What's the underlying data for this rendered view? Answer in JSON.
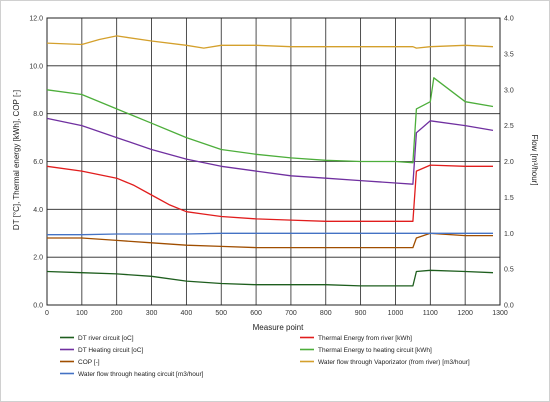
{
  "chart_data": {
    "type": "line",
    "title": "",
    "xlabel": "Measure point",
    "ylabel": "DT [°C], Thermal energy [kWh], COP [-]",
    "y2label": "Flow [m³/hour]",
    "xlim": [
      0,
      1300
    ],
    "ylim": [
      0,
      12
    ],
    "y2lim": [
      0,
      4
    ],
    "x_ticks": [
      "0",
      "100",
      "200",
      "300",
      "400",
      "500",
      "600",
      "700",
      "800",
      "900",
      "1000",
      "1100",
      "1200",
      "1300"
    ],
    "y_ticks": [
      "0.0",
      "2.0",
      "4.0",
      "6.0",
      "8.0",
      "10.0",
      "12.0"
    ],
    "y2_ticks": [
      "0.0",
      "0.5",
      "1.0",
      "1.5",
      "2.0",
      "2.5",
      "3.0",
      "3.5",
      "4.0"
    ],
    "grid": true,
    "legend_position": "bottom",
    "series": [
      {
        "name": "DT river circuit [oC]",
        "axis": "left",
        "color": "#1e5e1e",
        "x": [
          0,
          100,
          200,
          300,
          400,
          500,
          600,
          700,
          800,
          900,
          1000,
          1050,
          1060,
          1100,
          1200,
          1280
        ],
        "y": [
          1.4,
          1.35,
          1.3,
          1.2,
          1.0,
          0.9,
          0.85,
          0.85,
          0.85,
          0.8,
          0.8,
          0.8,
          1.4,
          1.45,
          1.4,
          1.35
        ]
      },
      {
        "name": "Thermal Energy from river  [kWh]",
        "axis": "left",
        "color": "#e11d1d",
        "x": [
          0,
          100,
          200,
          250,
          300,
          350,
          400,
          450,
          500,
          600,
          700,
          800,
          900,
          1000,
          1050,
          1060,
          1100,
          1200,
          1280
        ],
        "y": [
          5.8,
          5.6,
          5.3,
          5.0,
          4.6,
          4.2,
          3.9,
          3.8,
          3.7,
          3.6,
          3.55,
          3.5,
          3.5,
          3.5,
          3.5,
          5.6,
          5.85,
          5.8,
          5.8
        ]
      },
      {
        "name": "DT Heating circuit [oC]",
        "axis": "left",
        "color": "#7030a0",
        "x": [
          0,
          100,
          200,
          300,
          400,
          500,
          600,
          700,
          800,
          900,
          1000,
          1050,
          1060,
          1100,
          1200,
          1280
        ],
        "y": [
          7.8,
          7.5,
          7.0,
          6.5,
          6.1,
          5.8,
          5.6,
          5.4,
          5.3,
          5.2,
          5.1,
          5.05,
          7.2,
          7.7,
          7.5,
          7.3
        ]
      },
      {
        "name": "Thermal Energy to heating circuit  [kWh]",
        "axis": "left",
        "color": "#4dae3b",
        "x": [
          0,
          100,
          200,
          300,
          400,
          500,
          600,
          700,
          800,
          900,
          1000,
          1050,
          1060,
          1100,
          1110,
          1200,
          1280
        ],
        "y": [
          9.0,
          8.8,
          8.2,
          7.6,
          7.0,
          6.5,
          6.3,
          6.15,
          6.05,
          6.0,
          6.0,
          5.95,
          8.2,
          8.5,
          9.5,
          8.5,
          8.3
        ]
      },
      {
        "name": "COP [-]",
        "axis": "left",
        "color": "#a04e00",
        "x": [
          0,
          100,
          200,
          300,
          400,
          500,
          600,
          700,
          800,
          900,
          1000,
          1050,
          1060,
          1100,
          1200,
          1280
        ],
        "y": [
          2.8,
          2.8,
          2.7,
          2.6,
          2.5,
          2.45,
          2.4,
          2.4,
          2.4,
          2.4,
          2.4,
          2.4,
          2.8,
          3.0,
          2.9,
          2.9
        ]
      },
      {
        "name": "Water flow through Vaporizator (from river)  [m3/hour]",
        "axis": "right",
        "color": "#d4a02c",
        "x": [
          0,
          100,
          150,
          200,
          300,
          400,
          450,
          500,
          600,
          700,
          800,
          900,
          1000,
          1050,
          1060,
          1100,
          1200,
          1280
        ],
        "y": [
          3.65,
          3.63,
          3.7,
          3.75,
          3.68,
          3.62,
          3.58,
          3.62,
          3.62,
          3.6,
          3.6,
          3.6,
          3.6,
          3.6,
          3.58,
          3.6,
          3.62,
          3.6
        ]
      },
      {
        "name": "Water flow through heating circuit  [m3/hour]",
        "axis": "right",
        "color": "#4472c4",
        "x": [
          0,
          100,
          200,
          300,
          400,
          500,
          600,
          700,
          800,
          900,
          1000,
          1050,
          1100,
          1200,
          1280
        ],
        "y": [
          0.98,
          0.98,
          0.99,
          0.99,
          0.99,
          1.0,
          1.0,
          1.0,
          1.0,
          1.0,
          1.0,
          1.0,
          1.0,
          1.0,
          1.0
        ]
      }
    ]
  }
}
